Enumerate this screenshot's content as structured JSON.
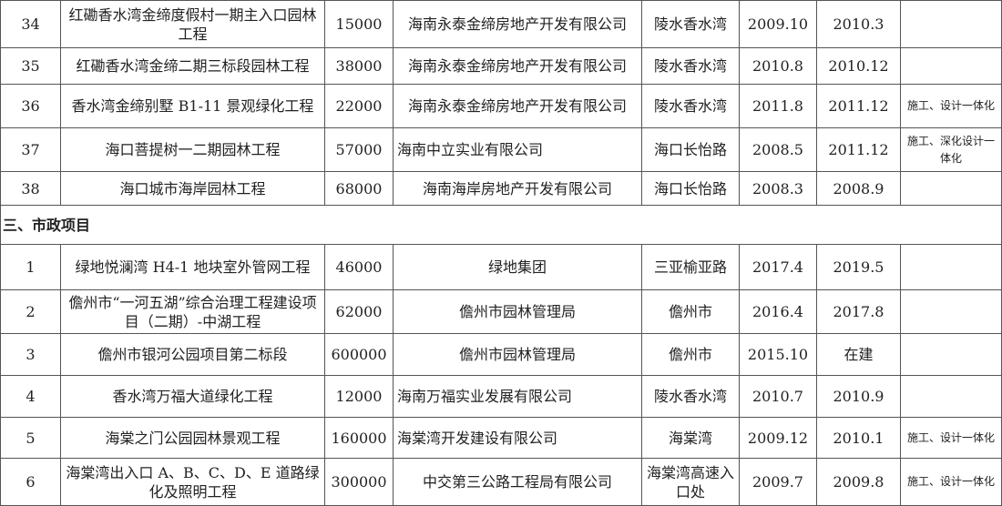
{
  "rows_top": [
    {
      "no": "34",
      "name": "红磡香水湾金缔度假村一期主入口园林工程",
      "area": "15000",
      "client": "海南永泰金缔房地产开发有限公司",
      "location": "陵水香水湾",
      "start": "2009.10",
      "end": "2010.3",
      "note": ""
    },
    {
      "no": "35",
      "name": "红磡香水湾金缔二期三标段园林工程",
      "area": "38000",
      "client": "海南永泰金缔房地产开发有限公司",
      "location": "陵水香水湾",
      "start": "2010.8",
      "end": "2010.12",
      "note": ""
    },
    {
      "no": "36",
      "name": "香水湾金缔别墅 B1-11 景观绿化工程",
      "area": "22000",
      "client": "海南永泰金缔房地产开发有限公司",
      "location": "陵水香水湾",
      "start": "2011.8",
      "end": "2011.12",
      "note": "施工、设计一体化"
    },
    {
      "no": "37",
      "name": "海口菩提树一二期园林工程",
      "area": "57000",
      "client": "海南中立实业有限公司",
      "location": "海口长怡路",
      "start": "2008.5",
      "end": "2011.12",
      "note": "施工、深化设计一体化"
    },
    {
      "no": "38",
      "name": "海口城市海岸园林工程",
      "area": "68000",
      "client": "海南海岸房地产开发有限公司",
      "location": "海口长怡路",
      "start": "2008.3",
      "end": "2008.9",
      "note": ""
    }
  ],
  "section_title": "三、市政项目",
  "rows_bottom": [
    {
      "no": "1",
      "name": "绿地悦澜湾 H4-1 地块室外管网工程",
      "area": "46000",
      "client": "绿地集团",
      "location": "三亚榆亚路",
      "start": "2017.4",
      "end": "2019.5",
      "note": ""
    },
    {
      "no": "2",
      "name": "儋州市“一河五湖”综合治理工程建设项目（二期）-中湖工程",
      "area": "62000",
      "client": "儋州市园林管理局",
      "location": "儋州市",
      "start": "2016.4",
      "end": "2017.8",
      "note": ""
    },
    {
      "no": "3",
      "name": "儋州市银河公园项目第二标段",
      "area": "600000",
      "client": "儋州市园林管理局",
      "location": "儋州市",
      "start": "2015.10",
      "end": "在建",
      "note": ""
    },
    {
      "no": "4",
      "name": "香水湾万福大道绿化工程",
      "area": "12000",
      "client": "海南万福实业发展有限公司",
      "location": "陵水香水湾",
      "start": "2010.7",
      "end": "2010.9",
      "note": ""
    },
    {
      "no": "5",
      "name": "海棠之门公园园林景观工程",
      "area": "160000",
      "client": "海棠湾开发建设有限公司",
      "location": "海棠湾",
      "start": "2009.12",
      "end": "2010.1",
      "note": "施工、设计一体化"
    },
    {
      "no": "6",
      "name": "海棠湾出入口 A、B、C、D、E 道路绿化及照明工程",
      "area": "300000",
      "client": "中交第三公路工程局有限公司",
      "location": "海棠湾高速入口处",
      "start": "2009.7",
      "end": "2009.8",
      "note": "施工、设计一体化"
    }
  ]
}
